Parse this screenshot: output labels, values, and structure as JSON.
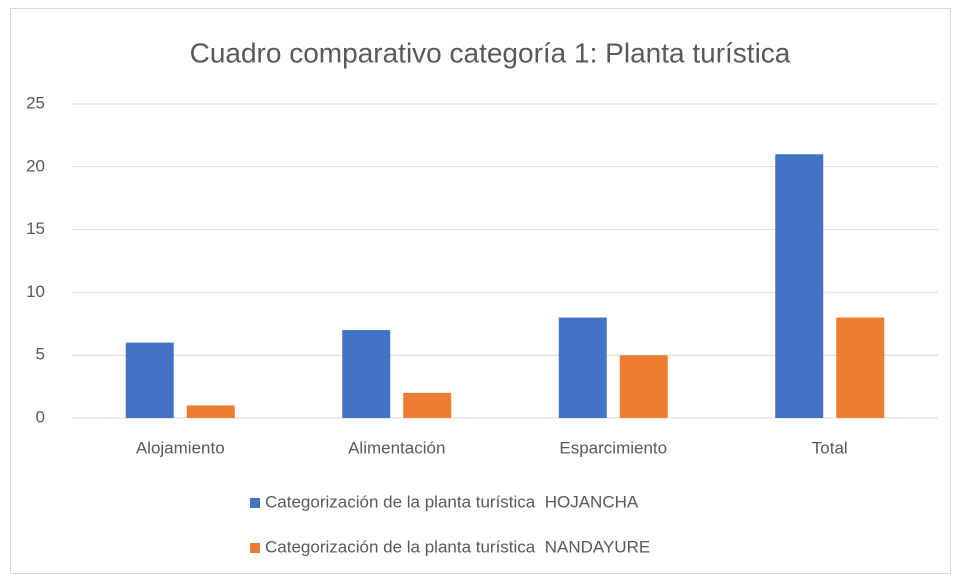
{
  "chart_data": {
    "type": "bar",
    "title": "Cuadro comparativo categoría 1: Planta turística",
    "categories": [
      "Alojamiento",
      "Alimentación",
      "Esparcimiento",
      "Total"
    ],
    "series": [
      {
        "name": "Categorización de la planta turística  HOJANCHA",
        "color": "#4472c4",
        "values": [
          6,
          7,
          8,
          21
        ]
      },
      {
        "name": "Categorización de la planta turística  NANDAYURE",
        "color": "#ed7d31",
        "values": [
          1,
          2,
          5,
          8
        ]
      }
    ],
    "ylim": [
      0,
      25
    ],
    "yticks": [
      0,
      5,
      10,
      15,
      20,
      25
    ],
    "grid": true,
    "legend": "bottom"
  }
}
